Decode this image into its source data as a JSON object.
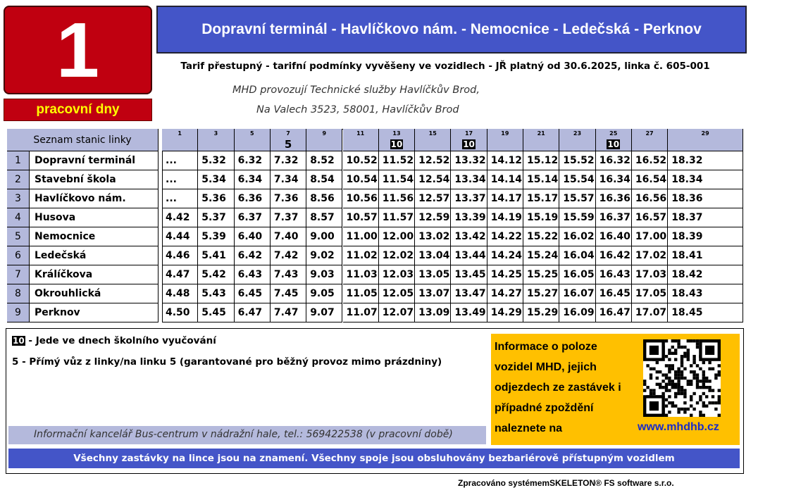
{
  "line_number": "1",
  "day_type": "pracovní dny",
  "route": "Dopravní terminál - Havlíčkovo nám. - Nemocnice - Ledečská - Perknov",
  "tariff": "Tarif přestupný - tarifní podmínky vyvěšeny ve vozidlech - JŘ platný od 30.6.2025, linka č. 605-001",
  "operator": [
    "MHD provozují Technické služby Havlíčkův Brod,",
    "Na Valech 3523, 58001, Havlíčkův Brod"
  ],
  "table": {
    "stations_header": "Seznam stanic linky",
    "trips": [
      {
        "number": "1",
        "note": null
      },
      {
        "number": "3",
        "note": null
      },
      {
        "number": "5",
        "note": null
      },
      {
        "number": "7",
        "note": "5"
      },
      {
        "number": "9",
        "note": null
      },
      {
        "number": "11",
        "note": null
      },
      {
        "number": "13",
        "note": "10"
      },
      {
        "number": "15",
        "note": null
      },
      {
        "number": "17",
        "note": "10"
      },
      {
        "number": "19",
        "note": null
      },
      {
        "number": "21",
        "note": null
      },
      {
        "number": "23",
        "note": null
      },
      {
        "number": "25",
        "note": "10"
      },
      {
        "number": "27",
        "note": null
      },
      {
        "number": "29",
        "note": null
      }
    ],
    "stops": [
      {
        "number": "1",
        "name": "Dopravní terminál",
        "times": [
          "...",
          "5.32",
          "6.32",
          "7.32",
          "8.52",
          "10.52",
          "11.52",
          "12.52",
          "13.32",
          "14.12",
          "15.12",
          "15.52",
          "16.32",
          "16.52",
          "18.32"
        ]
      },
      {
        "number": "2",
        "name": "Stavební škola",
        "times": [
          "...",
          "5.34",
          "6.34",
          "7.34",
          "8.54",
          "10.54",
          "11.54",
          "12.54",
          "13.34",
          "14.14",
          "15.14",
          "15.54",
          "16.34",
          "16.54",
          "18.34"
        ]
      },
      {
        "number": "3",
        "name": "Havlíčkovo nám.",
        "times": [
          "...",
          "5.36",
          "6.36",
          "7.36",
          "8.56",
          "10.56",
          "11.56",
          "12.57",
          "13.37",
          "14.17",
          "15.17",
          "15.57",
          "16.36",
          "16.56",
          "18.36"
        ]
      },
      {
        "number": "4",
        "name": "Husova",
        "times": [
          "4.42",
          "5.37",
          "6.37",
          "7.37",
          "8.57",
          "10.57",
          "11.57",
          "12.59",
          "13.39",
          "14.19",
          "15.19",
          "15.59",
          "16.37",
          "16.57",
          "18.37"
        ]
      },
      {
        "number": "5",
        "name": "Nemocnice",
        "times": [
          "4.44",
          "5.39",
          "6.40",
          "7.40",
          "9.00",
          "11.00",
          "12.00",
          "13.02",
          "13.42",
          "14.22",
          "15.22",
          "16.02",
          "16.40",
          "17.00",
          "18.39"
        ]
      },
      {
        "number": "6",
        "name": "Ledečská",
        "times": [
          "4.46",
          "5.41",
          "6.42",
          "7.42",
          "9.02",
          "11.02",
          "12.02",
          "13.04",
          "13.44",
          "14.24",
          "15.24",
          "16.04",
          "16.42",
          "17.02",
          "18.41"
        ]
      },
      {
        "number": "7",
        "name": "Králíčkova",
        "times": [
          "4.47",
          "5.42",
          "6.43",
          "7.43",
          "9.03",
          "11.03",
          "12.03",
          "13.05",
          "13.45",
          "14.25",
          "15.25",
          "16.05",
          "16.43",
          "17.03",
          "18.42"
        ]
      },
      {
        "number": "8",
        "name": "Okrouhlická",
        "times": [
          "4.48",
          "5.43",
          "6.45",
          "7.45",
          "9.05",
          "11.05",
          "12.05",
          "13.07",
          "13.47",
          "14.27",
          "15.27",
          "16.07",
          "16.45",
          "17.05",
          "18.43"
        ]
      },
      {
        "number": "9",
        "name": "Perknov",
        "times": [
          "4.50",
          "5.45",
          "6.47",
          "7.47",
          "9.07",
          "11.07",
          "12.07",
          "13.09",
          "13.49",
          "14.29",
          "15.29",
          "16.09",
          "16.47",
          "17.07",
          "18.45"
        ]
      }
    ]
  },
  "legend": [
    {
      "symbol": "10",
      "text": "- Jede ve dnech školního vyučování"
    },
    {
      "symbol": "5",
      "text": "- Přímý vůz z linky/na linku 5 (garantované pro běžný provoz mimo prázdniny)"
    }
  ],
  "info": {
    "text": "Informace o poloze vozidel MHD, jejich odjezdech ze zastávek i případné zpoždění naleznete na",
    "url": "www.mhdhb.cz"
  },
  "office": "Informační kancelář Bus-centrum v nádražní hale, tel.: 569422538 (v pracovní době)",
  "banner": "Všechny zastávky na lince jsou na znamení. Všechny spoje jsou obsluhovány bezbariérově přístupným vozidlem",
  "footer": "Zpracováno systémemSKELETON® FS software s.r.o."
}
